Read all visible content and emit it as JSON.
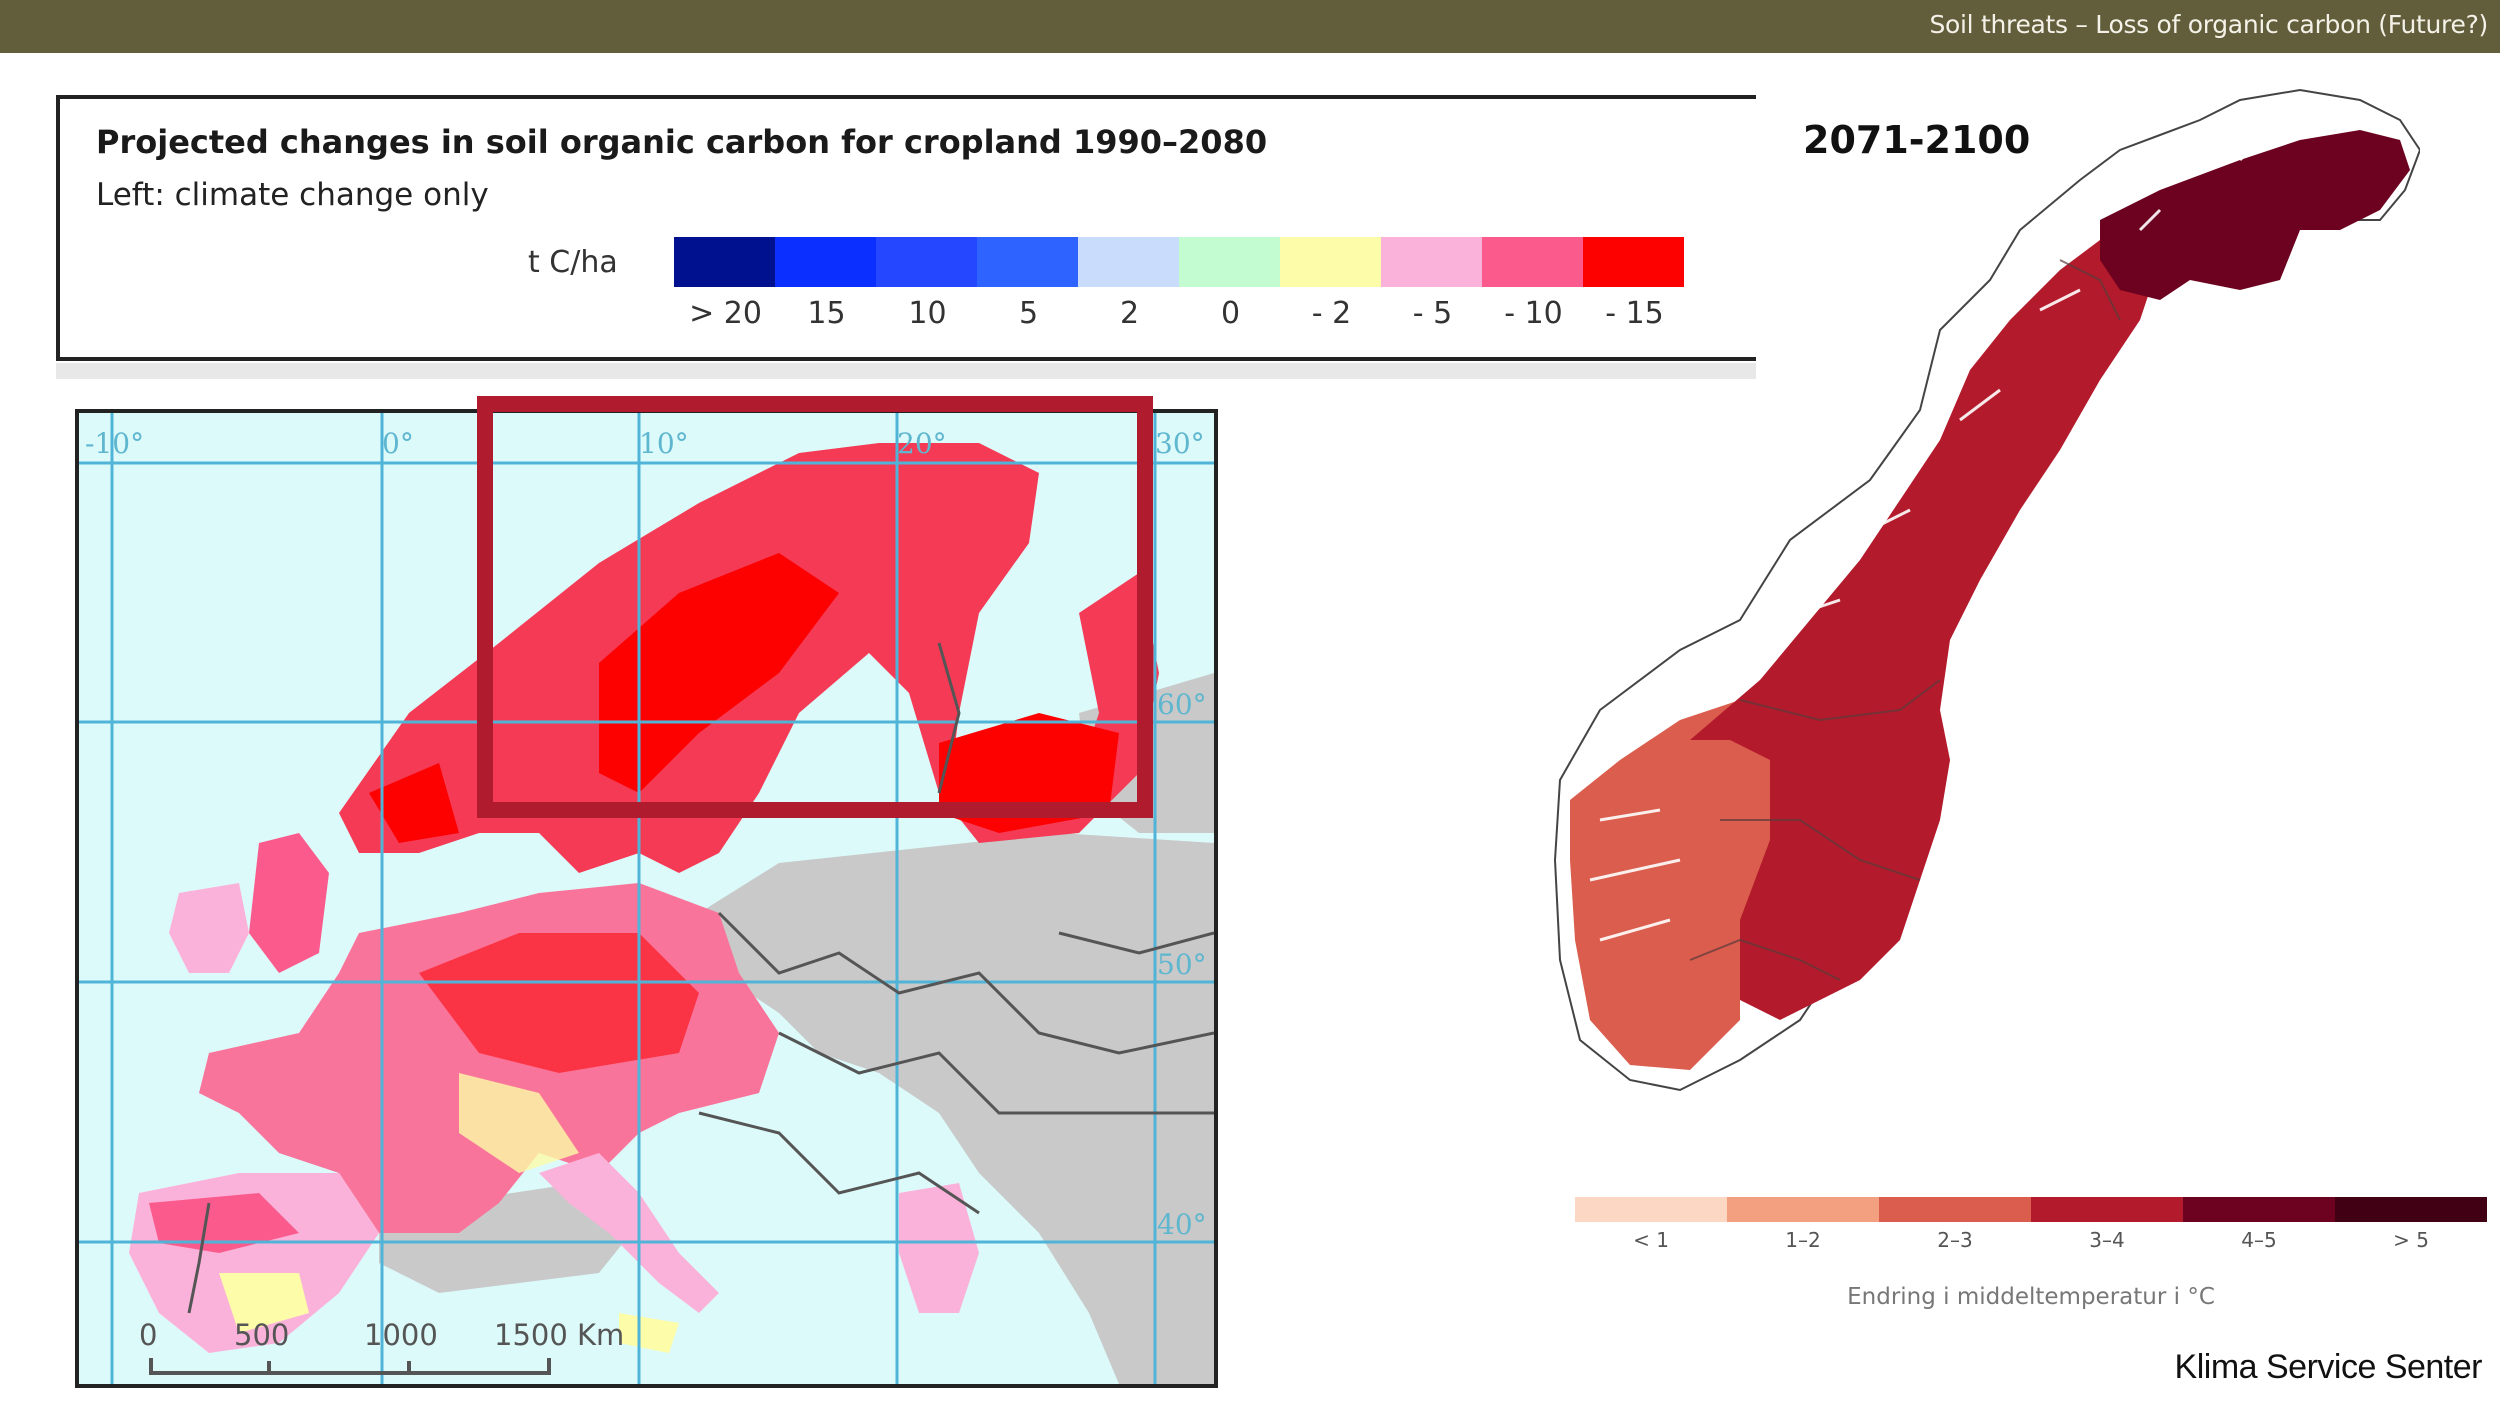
{
  "header": {
    "title": "Soil threats – Loss of organic carbon (Future?)",
    "bar_color": "#625d3a"
  },
  "left_panel": {
    "legend": {
      "title": "Projected changes in soil organic carbon for cropland 1990–2080",
      "subtitle": "Left: climate change only",
      "unit": "t C/ha",
      "bins": [
        {
          "label": "> 20",
          "color": "#00118f"
        },
        {
          "label": "15",
          "color": "#0a2fff"
        },
        {
          "label": "10",
          "color": "#2447ff"
        },
        {
          "label": "5",
          "color": "#2f63ff"
        },
        {
          "label": "2",
          "color": "#c9dcfb"
        },
        {
          "label": "0",
          "color": "#c3fcd0"
        },
        {
          "label": "- 2",
          "color": "#fdfca8"
        },
        {
          "label": "- 5",
          "color": "#fbb2da"
        },
        {
          "label": "- 10",
          "color": "#fb5b8c"
        },
        {
          "label": "- 15",
          "color": "#fd0000"
        }
      ]
    },
    "map": {
      "longitude_labels": [
        "-10°",
        "0°",
        "10°",
        "20°",
        "30°"
      ],
      "latitude_labels": [
        "60°",
        "50°",
        "40°"
      ],
      "scale_bar": {
        "ticks": [
          "0",
          "500",
          "1000",
          "1500 Km"
        ]
      },
      "colors": {
        "sea": "#dcfafa",
        "land_no_data": "#c9c9c9",
        "grid": "#4fb4d8",
        "border": "#555555"
      },
      "highlight_box_color": "#b01c2e"
    }
  },
  "right_panel": {
    "period": "2071-2100",
    "legend": {
      "caption": "Endring i middeltemperatur i °C",
      "bins": [
        {
          "label": "< 1",
          "color": "#fcd8c4"
        },
        {
          "label": "1–2",
          "color": "#f2a07f"
        },
        {
          "label": "2–3",
          "color": "#db5d4d"
        },
        {
          "label": "3–4",
          "color": "#b31b2c"
        },
        {
          "label": "4–5",
          "color": "#6c0220"
        },
        {
          "label": "> 5",
          "color": "#420015"
        }
      ]
    },
    "credit": "Klima Service Senter"
  }
}
